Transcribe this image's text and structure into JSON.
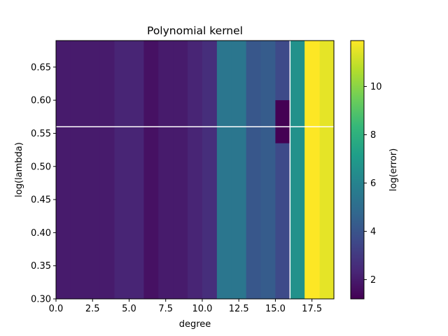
{
  "chart_data": {
    "type": "heatmap",
    "title": "Polynomial kernel",
    "xlabel": "degree",
    "ylabel": "log(lambda)",
    "colorbar_label": "log(error)",
    "colormap": "viridis",
    "xlim": [
      0,
      19
    ],
    "ylim": [
      0.3,
      0.69
    ],
    "x_ticks": [
      "0.0",
      "2.5",
      "5.0",
      "7.5",
      "10.0",
      "12.5",
      "15.0",
      "17.5"
    ],
    "y_ticks": [
      "0.30",
      "0.35",
      "0.40",
      "0.45",
      "0.50",
      "0.55",
      "0.60",
      "0.65"
    ],
    "colorbar_range": [
      1.2,
      11.9
    ],
    "colorbar_ticks": [
      "2",
      "4",
      "6",
      "8",
      "10"
    ],
    "x_edges": [
      0,
      1,
      2,
      3,
      4,
      5,
      6,
      7,
      8,
      9,
      10,
      11,
      12,
      13,
      14,
      15,
      16,
      17,
      18,
      19
    ],
    "column_values": [
      2.0,
      2.0,
      2.0,
      2.0,
      2.3,
      2.3,
      1.7,
      2.0,
      2.0,
      2.3,
      2.6,
      5.4,
      5.4,
      4.1,
      4.3,
      3.6,
      6.6,
      8.7,
      11.5
    ],
    "anomalies": [
      {
        "x_range": [
          15,
          16
        ],
        "y_range": [
          0.535,
          0.6
        ],
        "value": 1.2
      },
      {
        "x_range": [
          17,
          18
        ],
        "y_range": [
          0.3,
          0.69
        ],
        "value": 11.9
      }
    ],
    "crosshair": {
      "x": 16.0,
      "y": 0.56,
      "color": "#ffffff"
    }
  }
}
